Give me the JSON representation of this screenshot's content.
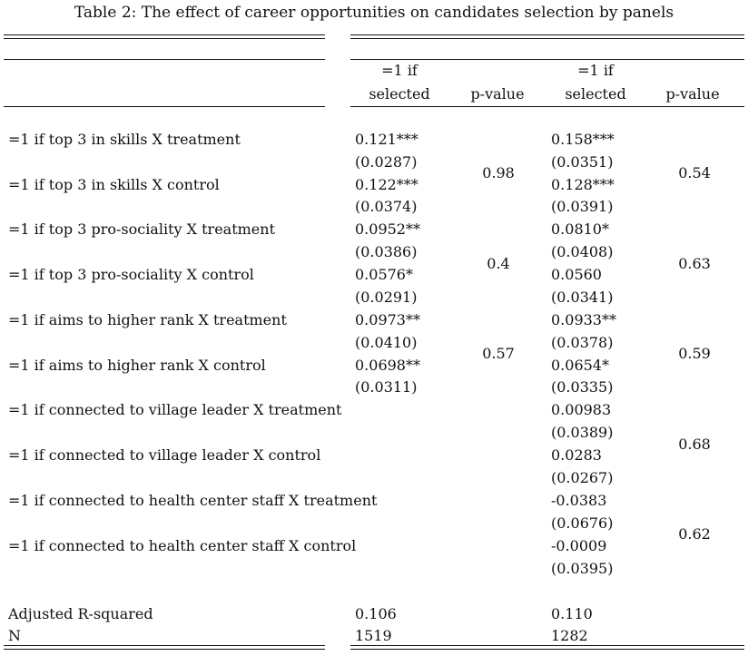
{
  "caption": "Table 2: The effect of career opportunities on candidates selection by panels",
  "header": {
    "col1_line1": "=1 if",
    "col1_line2": "selected",
    "col2": "p-value",
    "col3_line1": "=1 if",
    "col3_line2": "selected",
    "col4": "p-value"
  },
  "rows": [
    {
      "label": "=1 if top 3 in skills X treatment",
      "m1_coef": "0.121***",
      "m1_se": "(0.0287)",
      "m2_coef": "0.158***",
      "m2_se": "(0.0351)"
    },
    {
      "label": "=1 if top 3 in skills X control",
      "m1_coef": "0.122***",
      "m1_se": "(0.0374)",
      "m2_coef": "0.128***",
      "m2_se": "(0.0391)"
    },
    {
      "label": "=1 if top 3 pro-sociality X treatment",
      "m1_coef": "0.0952**",
      "m1_se": "(0.0386)",
      "m2_coef": "0.0810*",
      "m2_se": "(0.0408)"
    },
    {
      "label": "=1 if top 3 pro-sociality X control",
      "m1_coef": "0.0576*",
      "m1_se": "(0.0291)",
      "m2_coef": "0.0560",
      "m2_se": "(0.0341)"
    },
    {
      "label": "=1 if aims to higher rank X treatment",
      "m1_coef": "0.0973**",
      "m1_se": "(0.0410)",
      "m2_coef": "0.0933**",
      "m2_se": "(0.0378)"
    },
    {
      "label": "=1 if aims to higher rank X control",
      "m1_coef": "0.0698**",
      "m1_se": "(0.0311)",
      "m2_coef": "0.0654*",
      "m2_se": "(0.0335)"
    },
    {
      "label": "=1 if connected to village leader X treatment",
      "m1_coef": "",
      "m1_se": "",
      "m2_coef": "0.00983",
      "m2_se": "(0.0389)"
    },
    {
      "label": "=1 if connected to village leader X control",
      "m1_coef": "",
      "m1_se": "",
      "m2_coef": "0.0283",
      "m2_se": "(0.0267)"
    },
    {
      "label": "=1 if connected to health center staff X treatment",
      "m1_coef": "",
      "m1_se": "",
      "m2_coef": "-0.0383",
      "m2_se": "(0.0676)"
    },
    {
      "label": "=1 if connected to health center staff X control",
      "m1_coef": "",
      "m1_se": "",
      "m2_coef": "-0.0009",
      "m2_se": "(0.0395)"
    }
  ],
  "pvalues_m1": [
    "0.98",
    "0.4",
    "0.57"
  ],
  "pvalues_m2": [
    "0.54",
    "0.63",
    "0.59",
    "0.68",
    "0.62"
  ],
  "stats": [
    {
      "label": "Adjusted R-squared",
      "m1": "0.106",
      "m2": "0.110"
    },
    {
      "label": "N",
      "m1": "1519",
      "m2": "1282"
    }
  ]
}
